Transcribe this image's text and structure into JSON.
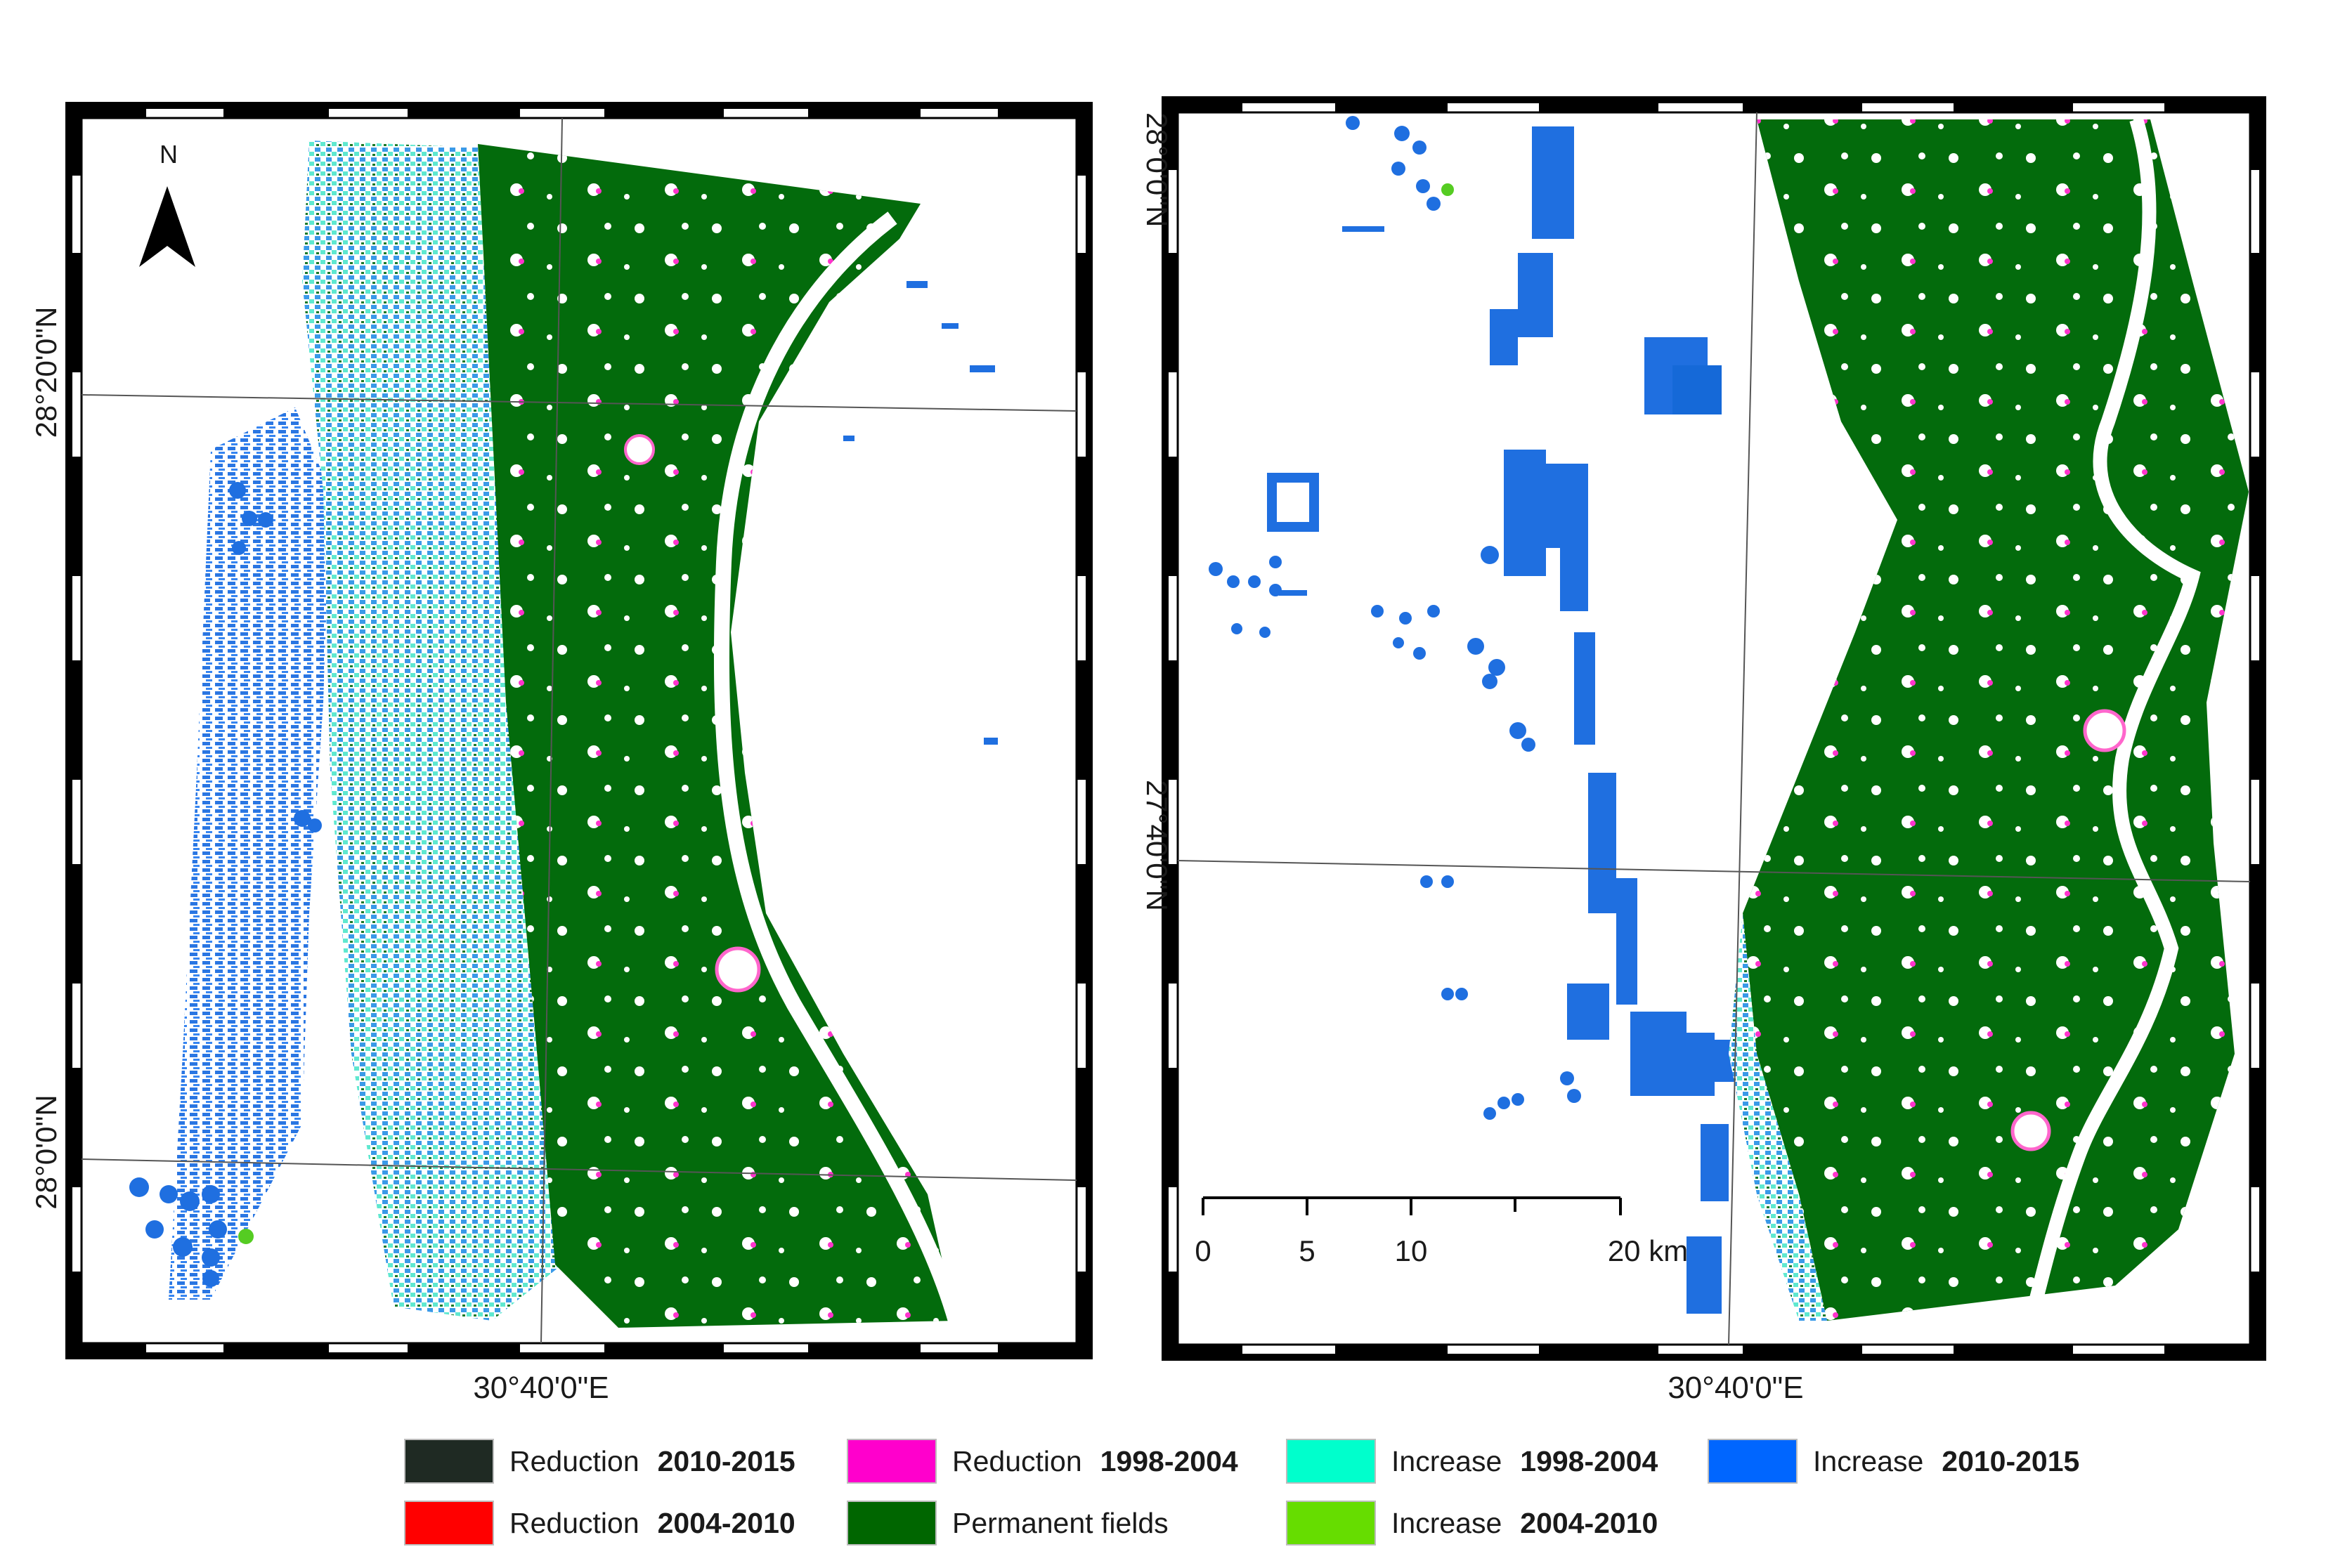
{
  "panels": [
    {
      "id": "left",
      "north_label": "N",
      "lat_labels": [
        "28°20'0\"N",
        "28°0'0\"N"
      ],
      "lon_label": "30°40'0\"E"
    },
    {
      "id": "right",
      "lat_labels": [
        "28°0'0\"N",
        "27°40'0\"N"
      ],
      "lon_label": "30°40'0\"E",
      "scale_bar": {
        "ticks": [
          "0",
          "5",
          "10",
          "20 km"
        ]
      }
    }
  ],
  "legend": [
    {
      "label": "Reduction",
      "period": "2010-2015",
      "color": "#1f2a23"
    },
    {
      "label": "Reduction",
      "period": "1998-2004",
      "color": "#ff00cc"
    },
    {
      "label": "Increase",
      "period": "1998-2004",
      "color": "#00ffcc"
    },
    {
      "label": "Increase",
      "period": "2010-2015",
      "color": "#0066ff"
    },
    {
      "label": "Reduction",
      "period": "2004-2010",
      "color": "#ff0000"
    },
    {
      "label": "Permanent fields",
      "period": "",
      "color": "#006600"
    },
    {
      "label": "Increase",
      "period": "2004-2010",
      "color": "#66dd00"
    }
  ]
}
